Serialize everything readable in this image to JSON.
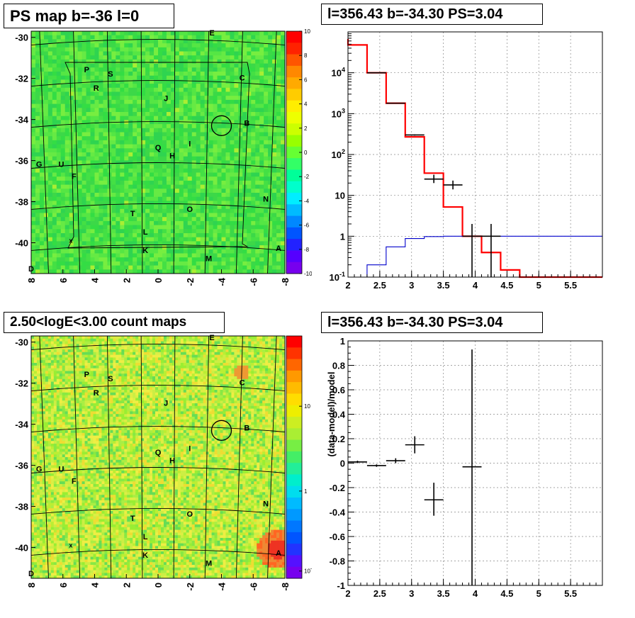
{
  "panels": {
    "top_left": {
      "title": "PS map b=-36 l=0"
    },
    "top_right": {
      "title": "l=356.43 b=-34.30 PS=3.04"
    },
    "bottom_left": {
      "title": "2.50<logE<3.00 count maps"
    },
    "bottom_right": {
      "title": "l=356.43 b=-34.30 PS=3.04"
    }
  },
  "chart_data": [
    {
      "id": "ps_map",
      "type": "heatmap",
      "title": "PS map b=-36 l=0",
      "xlabel": "",
      "ylabel": "",
      "x_range": [
        8,
        -8
      ],
      "y_range": [
        -41.5,
        -29.7
      ],
      "x_ticks": [
        "8",
        "6",
        "4",
        "2",
        "0",
        "-2",
        "-4",
        "-6",
        "-8"
      ],
      "y_ticks": [
        "-30",
        "-32",
        "-34",
        "-36",
        "-38",
        "-40"
      ],
      "colorbar_ticks": [
        "10",
        "8",
        "6",
        "4",
        "2",
        "0",
        "-2",
        "-4",
        "-6",
        "-8",
        "-10"
      ],
      "colorbar_range": [
        -10,
        10
      ],
      "labels": [
        {
          "text": "E",
          "l": -3.4,
          "b": -29.9
        },
        {
          "text": "P",
          "l": 4.5,
          "b": -31.7
        },
        {
          "text": "S",
          "l": 3.0,
          "b": -31.9
        },
        {
          "text": "C",
          "l": -5.3,
          "b": -32.1
        },
        {
          "text": "R",
          "l": 3.9,
          "b": -32.6
        },
        {
          "text": "J",
          "l": -0.5,
          "b": -33.1
        },
        {
          "text": "B",
          "l": -5.6,
          "b": -34.3
        },
        {
          "text": "I",
          "l": -2.0,
          "b": -35.3
        },
        {
          "text": "Q",
          "l": 0.0,
          "b": -35.5
        },
        {
          "text": "H",
          "l": -0.9,
          "b": -35.9
        },
        {
          "text": "G",
          "l": 7.5,
          "b": -36.3
        },
        {
          "text": "U",
          "l": 6.1,
          "b": -36.3
        },
        {
          "text": "F",
          "l": 5.3,
          "b": -36.9
        },
        {
          "text": "N",
          "l": -6.8,
          "b": -38.0
        },
        {
          "text": "O",
          "l": -2.0,
          "b": -38.5
        },
        {
          "text": "T",
          "l": 1.6,
          "b": -38.7
        },
        {
          "text": "L",
          "l": 0.8,
          "b": -39.6
        },
        {
          "text": "K",
          "l": 0.8,
          "b": -40.5
        },
        {
          "text": "A",
          "l": -7.6,
          "b": -40.4
        },
        {
          "text": "M",
          "l": -3.2,
          "b": -40.9
        },
        {
          "text": "D",
          "l": 8.0,
          "b": -41.4
        },
        {
          "text": "x",
          "l": 5.5,
          "b": -40.0
        }
      ],
      "circle": {
        "l": -4.0,
        "b": -34.3
      },
      "dominant_colors": [
        "#33dd44",
        "#55ee44"
      ]
    },
    {
      "id": "spectrum",
      "type": "line",
      "title": "l=356.43 b=-34.30 PS=3.04",
      "xlabel": "",
      "ylabel": "",
      "xlim": [
        2,
        6
      ],
      "ylim": [
        0.1,
        100000
      ],
      "y_scale": "log",
      "grid": true,
      "x_ticks": [
        "2",
        "2.5",
        "3",
        "3.5",
        "4",
        "4.5",
        "5",
        "5.5"
      ],
      "y_ticks": [
        "10^{-1}",
        "1",
        "10",
        "10^{2}",
        "10^{3}",
        "10^{4}"
      ],
      "series": [
        {
          "color": "#ff0000",
          "step_edges": [
            2.0,
            2.3,
            2.6,
            2.9,
            3.2,
            3.5,
            3.8,
            4.1,
            4.4,
            4.7,
            6.0
          ],
          "values": [
            48000,
            10000,
            1800,
            270,
            35,
            5.2,
            1.0,
            0.4,
            0.15,
            0.1
          ]
        },
        {
          "color": "#0000cc",
          "step_edges": [
            2.3,
            2.6,
            2.9,
            3.2,
            3.5,
            3.8,
            4.1,
            6.0
          ],
          "values": [
            0.2,
            0.55,
            0.88,
            0.98,
            1.0,
            1.0,
            1.0
          ]
        }
      ],
      "points": [
        {
          "x": 2.45,
          "y": 10000,
          "xerr": 0.15,
          "ylo": 9900,
          "yhi": 10100
        },
        {
          "x": 2.75,
          "y": 1800,
          "xerr": 0.15,
          "ylo": 1790,
          "yhi": 1810
        },
        {
          "x": 3.05,
          "y": 300,
          "xerr": 0.15,
          "ylo": 290,
          "yhi": 310
        },
        {
          "x": 3.35,
          "y": 25,
          "xerr": 0.15,
          "ylo": 20,
          "yhi": 32
        },
        {
          "x": 3.65,
          "y": 18,
          "xerr": 0.15,
          "ylo": 14,
          "yhi": 23
        },
        {
          "x": 3.95,
          "y": 1.0,
          "xerr": 0.15,
          "ylo": 0.1,
          "yhi": 2.0
        },
        {
          "x": 4.25,
          "y": 1.0,
          "xerr": 0.15,
          "ylo": 0.1,
          "yhi": 2.0
        }
      ]
    },
    {
      "id": "count_map",
      "type": "heatmap",
      "title": "2.50<logE<3.00 count maps",
      "xlabel": "",
      "ylabel": "",
      "x_range": [
        8,
        -8
      ],
      "y_range": [
        -41.5,
        -29.7
      ],
      "x_ticks": [
        "8",
        "6",
        "4",
        "2",
        "0",
        "-2",
        "-4",
        "-6",
        "-8"
      ],
      "y_ticks": [
        "-30",
        "-32",
        "-34",
        "-36",
        "-38",
        "-40"
      ],
      "colorbar_ticks": [
        "10",
        "1",
        "10^{-1}"
      ],
      "colorbar_scale": "log",
      "dominant_colors": [
        "#ccee44",
        "#99ee33"
      ]
    },
    {
      "id": "residuals",
      "type": "scatter",
      "title": "l=356.43 b=-34.30 PS=3.04",
      "xlabel": "",
      "ylabel": "(data-model)/model",
      "xlim": [
        2,
        6
      ],
      "ylim": [
        -1,
        1
      ],
      "grid": true,
      "x_ticks": [
        "2",
        "2.5",
        "3",
        "3.5",
        "4",
        "4.5",
        "5",
        "5.5"
      ],
      "y_ticks": [
        "1",
        "0.8",
        "0.6",
        "0.4",
        "0.2",
        "0",
        "-0.2",
        "-0.4",
        "-0.6",
        "-0.8",
        "-1"
      ],
      "points": [
        {
          "x": 2.15,
          "y": 0.01,
          "xerr": 0.15,
          "ylo": 0.0,
          "yhi": 0.02
        },
        {
          "x": 2.45,
          "y": -0.02,
          "xerr": 0.15,
          "ylo": -0.03,
          "yhi": -0.01
        },
        {
          "x": 2.75,
          "y": 0.02,
          "xerr": 0.15,
          "ylo": 0.0,
          "yhi": 0.04
        },
        {
          "x": 3.05,
          "y": 0.15,
          "xerr": 0.15,
          "ylo": 0.08,
          "yhi": 0.22
        },
        {
          "x": 3.35,
          "y": -0.3,
          "xerr": 0.15,
          "ylo": -0.43,
          "yhi": -0.16
        },
        {
          "x": 3.95,
          "y": -0.03,
          "xerr": 0.15,
          "ylo": -1.0,
          "yhi": 0.93
        }
      ]
    }
  ]
}
